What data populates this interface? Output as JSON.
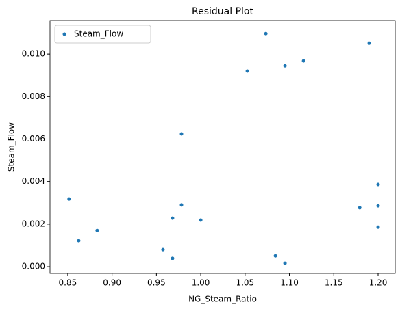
{
  "chart_data": {
    "type": "scatter",
    "title": "Residual Plot",
    "x_label": "NG_Steam_Ratio",
    "y_label": "Steam_Flow",
    "series": [
      {
        "name": "Steam_Flow",
        "color": "#1f77b4",
        "x": [
          0.8515,
          0.8624,
          0.8832,
          0.9574,
          0.9682,
          0.9682,
          0.9783,
          0.9783,
          1.0,
          1.0525,
          1.0734,
          1.0842,
          1.095,
          1.095,
          1.1159,
          1.1793,
          1.19,
          1.2,
          1.2,
          1.2
        ],
        "values": [
          0.00318,
          0.00122,
          0.0017,
          0.0008,
          0.00039,
          0.00228,
          0.0029,
          0.00624,
          0.00219,
          0.0092,
          0.01096,
          0.00051,
          0.00016,
          0.00945,
          0.00968,
          0.00277,
          0.01051,
          0.00386,
          0.00286,
          0.00186
        ]
      }
    ],
    "xlim": [
      0.83,
      1.2193
    ],
    "ylim": [
      -0.00032,
      0.01158
    ],
    "xticks": [
      0.85,
      {
        "value": 0.9,
        "label": "0.90"
      },
      0.95,
      {
        "value": 1.0,
        "label": "1.00"
      },
      1.05,
      {
        "value": 1.1,
        "label": "1.10"
      },
      1.15,
      {
        "value": 1.2,
        "label": "1.20"
      }
    ],
    "yticks": [
      {
        "value": 0,
        "label": "0.000"
      },
      0.002,
      0.004,
      0.006,
      0.008,
      {
        "value": 0.01,
        "label": "0.010"
      }
    ],
    "legend": "upper left",
    "grid": false
  }
}
